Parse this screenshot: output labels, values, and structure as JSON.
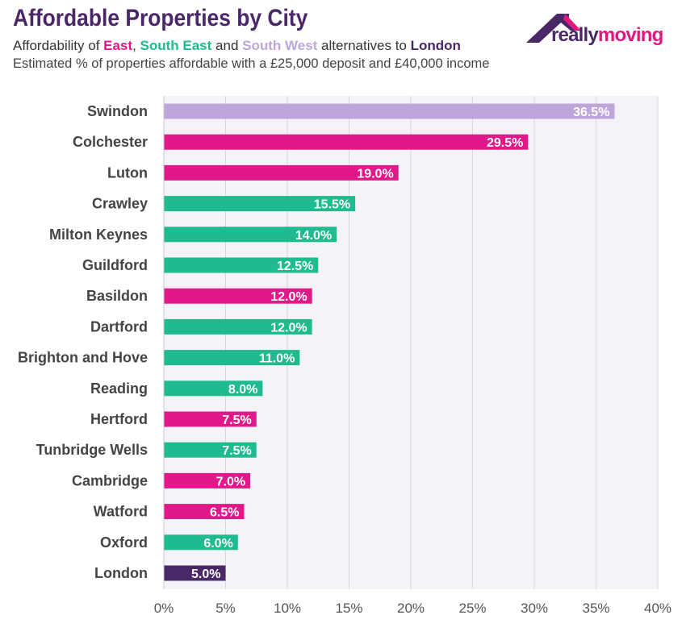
{
  "header": {
    "title": "Affordable Properties by City",
    "subtitle_prefix": "Affordability of ",
    "subtitle_east": "East",
    "subtitle_sep1": ", ",
    "subtitle_south_east": "South East",
    "subtitle_sep2": " and ",
    "subtitle_south_west": "South West",
    "subtitle_mid": " alternatives to ",
    "subtitle_london": "London",
    "note": "Estimated % of properties affordable with a £25,000 deposit and £40,000 income"
  },
  "logo": {
    "part1": "really",
    "part2": "moving",
    "icon": "house-roof-icon"
  },
  "colors": {
    "east": "#e0188a",
    "south_east": "#1fba8e",
    "south_west": "#bfa6da",
    "london": "#4a2766",
    "plot_background": "#f3f3f8",
    "gridline": "#d6d6dc"
  },
  "chart_data": {
    "type": "bar",
    "orientation": "horizontal",
    "title": "Affordable Properties by City",
    "categories": [
      "Swindon",
      "Colchester",
      "Luton",
      "Crawley",
      "Milton Keynes",
      "Guildford",
      "Basildon",
      "Dartford",
      "Brighton and Hove",
      "Reading",
      "Hertford",
      "Tunbridge Wells",
      "Cambridge",
      "Watford",
      "Oxford",
      "London"
    ],
    "values": [
      36.5,
      29.5,
      19.0,
      15.5,
      14.0,
      12.5,
      12.0,
      12.0,
      11.0,
      8.0,
      7.5,
      7.5,
      7.0,
      6.5,
      6.0,
      5.0
    ],
    "value_labels": [
      "36.5%",
      "29.5%",
      "19.0%",
      "15.5%",
      "14.0%",
      "12.5%",
      "12.0%",
      "12.0%",
      "11.0%",
      "8.0%",
      "7.5%",
      "7.5%",
      "7.0%",
      "6.5%",
      "6.0%",
      "5.0%"
    ],
    "regions": [
      "south_west",
      "east",
      "east",
      "south_east",
      "south_east",
      "south_east",
      "east",
      "south_east",
      "south_east",
      "south_east",
      "east",
      "south_east",
      "east",
      "east",
      "south_east",
      "london"
    ],
    "xlim": [
      0,
      40
    ],
    "xticks": [
      0,
      5,
      10,
      15,
      20,
      25,
      30,
      35,
      40
    ],
    "xtick_labels": [
      "0%",
      "5%",
      "10%",
      "15%",
      "20%",
      "25%",
      "30%",
      "35%",
      "40%"
    ],
    "grid": true
  }
}
